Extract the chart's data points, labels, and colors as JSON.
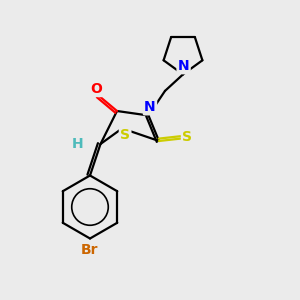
{
  "background_color": "#ebebeb",
  "atom_colors": {
    "C": "#000000",
    "N": "#0000FF",
    "O": "#FF0000",
    "S_ring": "#CCCC00",
    "S_thioxo": "#CCCC00",
    "Br": "#CC6600",
    "H": "#4DBBBB"
  },
  "lw": 1.6,
  "fontsize": 10
}
